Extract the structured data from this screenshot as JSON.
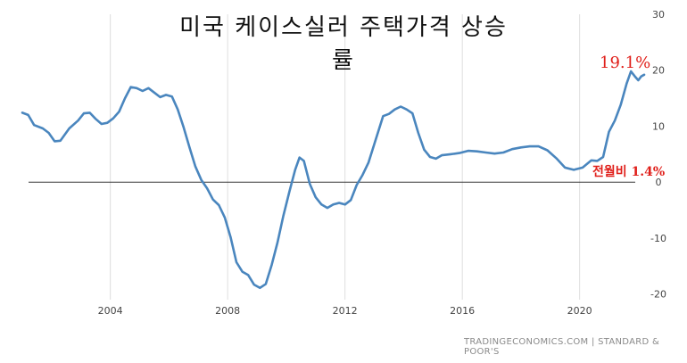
{
  "chart_data": {
    "type": "line",
    "title": "미국 케이스실러 주택가격 상승률",
    "x_ticks": [
      2004,
      2008,
      2012,
      2016,
      2020
    ],
    "y_ticks": [
      30,
      20,
      10,
      0,
      -10,
      -20
    ],
    "xlim": [
      2001.0,
      2022.2
    ],
    "ylim": [
      -21,
      30
    ],
    "grid": "vertical",
    "series": [
      {
        "color": "#4a86be",
        "points": [
          [
            2001.0,
            12.4
          ],
          [
            2001.2,
            12.0
          ],
          [
            2001.4,
            10.2
          ],
          [
            2001.7,
            9.6
          ],
          [
            2001.9,
            8.8
          ],
          [
            2002.1,
            7.3
          ],
          [
            2002.3,
            7.4
          ],
          [
            2002.6,
            9.6
          ],
          [
            2002.9,
            11.0
          ],
          [
            2003.1,
            12.3
          ],
          [
            2003.3,
            12.4
          ],
          [
            2003.5,
            11.3
          ],
          [
            2003.7,
            10.4
          ],
          [
            2003.9,
            10.6
          ],
          [
            2004.1,
            11.4
          ],
          [
            2004.3,
            12.6
          ],
          [
            2004.5,
            15.0
          ],
          [
            2004.7,
            17.0
          ],
          [
            2004.9,
            16.8
          ],
          [
            2005.1,
            16.3
          ],
          [
            2005.3,
            16.8
          ],
          [
            2005.5,
            16.0
          ],
          [
            2005.7,
            15.2
          ],
          [
            2005.9,
            15.6
          ],
          [
            2006.1,
            15.3
          ],
          [
            2006.3,
            13.0
          ],
          [
            2006.5,
            9.8
          ],
          [
            2006.7,
            6.2
          ],
          [
            2006.9,
            2.8
          ],
          [
            2007.1,
            0.4
          ],
          [
            2007.3,
            -1.1
          ],
          [
            2007.5,
            -3.1
          ],
          [
            2007.7,
            -4.1
          ],
          [
            2007.9,
            -6.3
          ],
          [
            2008.1,
            -9.8
          ],
          [
            2008.3,
            -14.3
          ],
          [
            2008.5,
            -16.0
          ],
          [
            2008.7,
            -16.6
          ],
          [
            2008.9,
            -18.3
          ],
          [
            2009.1,
            -18.9
          ],
          [
            2009.3,
            -18.2
          ],
          [
            2009.5,
            -14.8
          ],
          [
            2009.7,
            -10.8
          ],
          [
            2009.9,
            -6.0
          ],
          [
            2010.1,
            -1.8
          ],
          [
            2010.3,
            2.2
          ],
          [
            2010.45,
            4.4
          ],
          [
            2010.6,
            3.8
          ],
          [
            2010.8,
            -0.3
          ],
          [
            2011.0,
            -2.7
          ],
          [
            2011.2,
            -4.0
          ],
          [
            2011.4,
            -4.6
          ],
          [
            2011.6,
            -4.0
          ],
          [
            2011.8,
            -3.7
          ],
          [
            2012.0,
            -4.0
          ],
          [
            2012.2,
            -3.2
          ],
          [
            2012.4,
            -0.5
          ],
          [
            2012.6,
            1.3
          ],
          [
            2012.8,
            3.5
          ],
          [
            2013.0,
            6.8
          ],
          [
            2013.3,
            11.8
          ],
          [
            2013.5,
            12.2
          ],
          [
            2013.7,
            13.0
          ],
          [
            2013.9,
            13.5
          ],
          [
            2014.1,
            13.0
          ],
          [
            2014.3,
            12.3
          ],
          [
            2014.5,
            8.8
          ],
          [
            2014.7,
            5.8
          ],
          [
            2014.9,
            4.5
          ],
          [
            2015.1,
            4.2
          ],
          [
            2015.3,
            4.8
          ],
          [
            2015.6,
            5.0
          ],
          [
            2015.9,
            5.2
          ],
          [
            2016.2,
            5.6
          ],
          [
            2016.5,
            5.5
          ],
          [
            2016.8,
            5.3
          ],
          [
            2017.1,
            5.1
          ],
          [
            2017.4,
            5.3
          ],
          [
            2017.7,
            5.9
          ],
          [
            2018.0,
            6.2
          ],
          [
            2018.3,
            6.4
          ],
          [
            2018.6,
            6.4
          ],
          [
            2018.9,
            5.7
          ],
          [
            2019.2,
            4.3
          ],
          [
            2019.5,
            2.6
          ],
          [
            2019.8,
            2.2
          ],
          [
            2020.1,
            2.6
          ],
          [
            2020.4,
            3.9
          ],
          [
            2020.6,
            3.8
          ],
          [
            2020.8,
            4.5
          ],
          [
            2021.0,
            9.0
          ],
          [
            2021.2,
            11.0
          ],
          [
            2021.4,
            13.8
          ],
          [
            2021.6,
            17.6
          ],
          [
            2021.75,
            19.8
          ],
          [
            2021.9,
            18.8
          ],
          [
            2022.0,
            18.2
          ],
          [
            2022.1,
            18.9
          ],
          [
            2022.2,
            19.2
          ]
        ]
      }
    ],
    "annotations": [
      {
        "text": "19.1%",
        "color": "#e0201b"
      },
      {
        "text": "전월비 1.4%",
        "color": "#e0201b"
      }
    ],
    "source": "TRADINGECONOMICS.COM  |  STANDARD & POOR'S"
  }
}
